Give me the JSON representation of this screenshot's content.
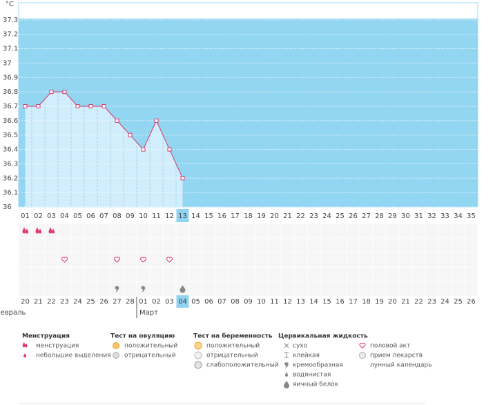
{
  "chart_data": {
    "type": "line",
    "ylabel": "°C",
    "categories": [
      "01",
      "02",
      "03",
      "04",
      "05",
      "06",
      "07",
      "08",
      "09",
      "10",
      "11",
      "12",
      "13",
      "14",
      "15",
      "16",
      "17",
      "18",
      "19",
      "20",
      "21",
      "22",
      "23",
      "24",
      "25",
      "26",
      "27",
      "28",
      "29",
      "30",
      "31",
      "32",
      "33",
      "34",
      "35"
    ],
    "series": [
      {
        "color": "#d63a6f",
        "values": [
          36.7,
          36.7,
          36.8,
          36.8,
          36.7,
          36.7,
          36.7,
          36.6,
          36.5,
          36.4,
          36.6,
          36.4,
          36.2,
          null,
          null,
          null,
          null,
          null,
          null,
          null,
          null,
          null,
          null,
          null,
          null,
          null,
          null,
          null,
          null,
          null,
          null,
          null,
          null,
          null,
          null
        ]
      }
    ],
    "ylim": [
      36,
      37.4
    ],
    "yticks": [
      36,
      36.1,
      36.2,
      36.3,
      36.4,
      36.5,
      36.6,
      36.7,
      36.8,
      36.9,
      37,
      37.1,
      37.2,
      37.3
    ],
    "grid": true,
    "selected_category": "13"
  },
  "symbol_rows": [
    [
      "menstruation",
      "menstruation",
      "menstruation",
      null,
      null,
      null,
      null,
      null,
      null,
      null,
      null,
      null,
      null,
      null,
      null,
      null,
      null,
      null,
      null,
      null,
      null,
      null,
      null,
      null,
      null,
      null,
      null,
      null,
      null,
      null,
      null,
      null,
      null,
      null,
      null
    ],
    [
      null,
      null,
      null,
      null,
      null,
      null,
      null,
      null,
      null,
      null,
      null,
      null,
      null,
      null,
      null,
      null,
      null,
      null,
      null,
      null,
      null,
      null,
      null,
      null,
      null,
      null,
      null,
      null,
      null,
      null,
      null,
      null,
      null,
      null,
      null
    ],
    [
      null,
      null,
      null,
      "heart",
      null,
      null,
      null,
      "heart",
      null,
      "heart",
      null,
      "heart",
      null,
      null,
      null,
      null,
      null,
      null,
      null,
      null,
      null,
      null,
      null,
      null,
      null,
      null,
      null,
      null,
      null,
      null,
      null,
      null,
      null,
      null,
      null
    ],
    [
      null,
      null,
      null,
      null,
      null,
      null,
      null,
      null,
      null,
      null,
      null,
      null,
      null,
      null,
      null,
      null,
      null,
      null,
      null,
      null,
      null,
      null,
      null,
      null,
      null,
      null,
      null,
      null,
      null,
      null,
      null,
      null,
      null,
      null,
      null
    ],
    [
      null,
      null,
      null,
      null,
      null,
      null,
      null,
      "creamy",
      null,
      "creamy",
      null,
      null,
      "egg_white",
      null,
      null,
      null,
      null,
      null,
      null,
      null,
      null,
      null,
      null,
      null,
      null,
      null,
      null,
      null,
      null,
      null,
      null,
      null,
      null,
      null,
      null
    ]
  ],
  "calendar": {
    "dates": [
      "20",
      "21",
      "22",
      "23",
      "24",
      "25",
      "26",
      "27",
      "28",
      "01",
      "02",
      "03",
      "04",
      "05",
      "06",
      "07",
      "08",
      "09",
      "10",
      "11",
      "12",
      "13",
      "14",
      "15",
      "16",
      "17",
      "18",
      "19",
      "20",
      "21",
      "22",
      "23",
      "24",
      "25",
      "26"
    ],
    "weekend": [
      false,
      false,
      true,
      true,
      false,
      false,
      false,
      false,
      false,
      true,
      true,
      false,
      false,
      false,
      false,
      false,
      true,
      true,
      false,
      false,
      false,
      false,
      false,
      true,
      true,
      false,
      false,
      false,
      false,
      false,
      true,
      true,
      false,
      false,
      false
    ],
    "selected_date": "04",
    "months": [
      {
        "label": "Февраль",
        "start": "20"
      },
      {
        "label": "Март",
        "start": "01"
      }
    ]
  },
  "legend": {
    "menstruation": {
      "title": "Менструация",
      "items": [
        "менструация",
        "небольшие выделения"
      ]
    },
    "ovulation_test": {
      "title": "Тест на овуляцию",
      "items": [
        "положительный",
        "отрицательный"
      ]
    },
    "pregnancy_test": {
      "title": "Тест на беременность",
      "items": [
        "положительный",
        "отрицательный",
        "слабоположительный"
      ]
    },
    "cervical_fluid": {
      "title": "Цервикальная жидкость",
      "items": [
        "сухо",
        "клейкая",
        "кремообразная",
        "водянистая",
        "яичный белок"
      ]
    },
    "other": {
      "items": [
        "половой акт",
        "прием лекарств",
        "лунный календарь"
      ]
    }
  }
}
